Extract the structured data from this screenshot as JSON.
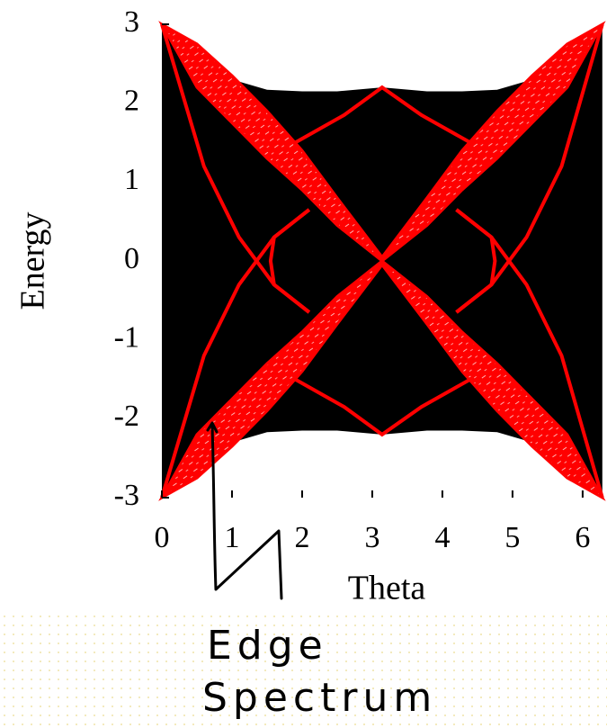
{
  "chart_data": {
    "type": "spectrum",
    "xlabel": "Theta",
    "ylabel": "Energy",
    "annotation": "Edge Spectrum",
    "xlim": [
      0,
      6.2832
    ],
    "ylim": [
      -3,
      3
    ],
    "xticks": [
      0,
      1,
      2,
      3,
      4,
      5,
      6
    ],
    "yticks": [
      -3,
      -2,
      -1,
      0,
      1,
      2,
      3
    ],
    "bulk": {
      "color": "#000000",
      "x": [
        0,
        0.5,
        1,
        1.5,
        2,
        2.5,
        3.14,
        3.78,
        4.28,
        4.78,
        5.28,
        5.78,
        6.28
      ],
      "upper": [
        3,
        2.6,
        2.3,
        2.17,
        2.15,
        2.15,
        2.2,
        2.15,
        2.15,
        2.17,
        2.3,
        2.6,
        3
      ],
      "lower": [
        -3,
        -2.6,
        -2.3,
        -2.17,
        -2.15,
        -2.15,
        -2.2,
        -2.15,
        -2.15,
        -2.17,
        -2.3,
        -2.6,
        -3
      ]
    },
    "bands": [
      {
        "color": "#ff0000",
        "x": [
          0,
          0.5,
          1,
          1.5,
          2,
          2.5,
          3.14
        ],
        "upper": [
          3,
          2.75,
          2.35,
          1.9,
          1.4,
          0.8,
          0.05
        ],
        "lower": [
          3,
          2.2,
          1.75,
          1.3,
          0.9,
          0.45,
          0
        ]
      },
      {
        "color": "#ff0000",
        "x": [
          3.14,
          3.78,
          4.28,
          4.78,
          5.28,
          5.78,
          6.28
        ],
        "upper": [
          0.05,
          0.8,
          1.4,
          1.9,
          2.35,
          2.75,
          3
        ],
        "lower": [
          0,
          0.45,
          0.9,
          1.3,
          1.75,
          2.2,
          3
        ]
      },
      {
        "color": "#ff0000",
        "x": [
          0,
          0.5,
          1,
          1.5,
          2,
          2.5,
          3.14
        ],
        "upper": [
          -3,
          -2.2,
          -1.75,
          -1.3,
          -0.9,
          -0.45,
          0
        ],
        "lower": [
          -3,
          -2.75,
          -2.35,
          -1.9,
          -1.4,
          -0.8,
          -0.05
        ]
      },
      {
        "color": "#ff0000",
        "x": [
          3.14,
          3.78,
          4.28,
          4.78,
          5.28,
          5.78,
          6.28
        ],
        "upper": [
          0,
          -0.45,
          -0.9,
          -1.3,
          -1.75,
          -2.2,
          -3
        ],
        "lower": [
          -0.05,
          -0.8,
          -1.4,
          -1.9,
          -2.35,
          -2.75,
          -3
        ]
      }
    ],
    "curves": [
      {
        "color": "#ff0000",
        "x": [
          1.9,
          2.6,
          3.14,
          3.7,
          4.4
        ],
        "y": [
          1.5,
          1.85,
          2.2,
          1.85,
          1.5
        ]
      },
      {
        "color": "#ff0000",
        "x": [
          1.9,
          2.6,
          3.14,
          3.7,
          4.4
        ],
        "y": [
          -1.5,
          -1.85,
          -2.2,
          -1.85,
          -1.5
        ]
      },
      {
        "color": "#ff0000",
        "x": [
          2.1,
          1.6,
          1.55,
          1.6,
          2.1
        ],
        "y": [
          0.65,
          0.3,
          0,
          -0.3,
          -0.65
        ]
      },
      {
        "color": "#ff0000",
        "x": [
          4.2,
          4.7,
          4.75,
          4.7,
          4.2
        ],
        "y": [
          0.65,
          0.3,
          0,
          -0.3,
          -0.65
        ]
      },
      {
        "color": "#ff0000",
        "x": [
          0,
          0.6,
          1.1,
          1.6,
          2.1
        ],
        "y": [
          3,
          1.2,
          0.3,
          -0.3,
          -0.65
        ]
      },
      {
        "color": "#ff0000",
        "x": [
          0,
          0.6,
          1.1,
          1.6,
          2.1
        ],
        "y": [
          -3,
          -1.2,
          -0.3,
          0.3,
          0.65
        ]
      },
      {
        "color": "#ff0000",
        "x": [
          6.28,
          5.7,
          5.2,
          4.7,
          4.2
        ],
        "y": [
          3,
          1.2,
          0.3,
          -0.3,
          -0.65
        ]
      },
      {
        "color": "#ff0000",
        "x": [
          6.28,
          5.7,
          5.2,
          4.7,
          4.2
        ],
        "y": [
          -3,
          -1.2,
          -0.3,
          0.3,
          0.65
        ]
      }
    ]
  }
}
